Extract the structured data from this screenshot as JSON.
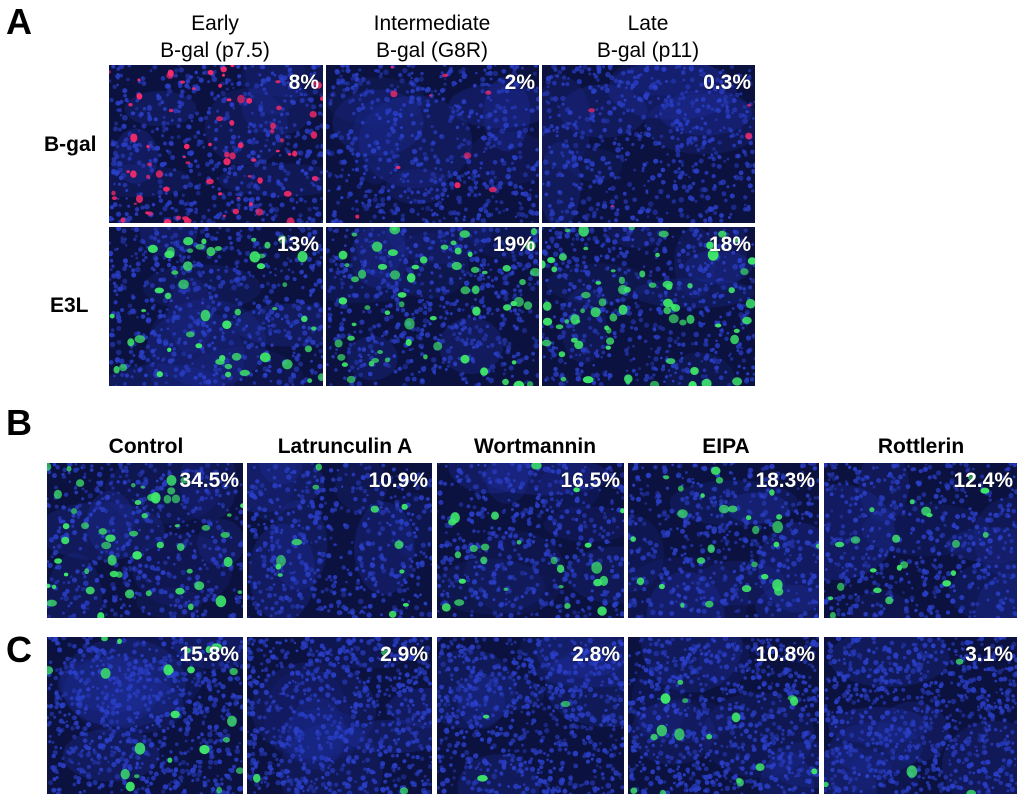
{
  "panels": {
    "A": {
      "letter": "A",
      "columns": [
        {
          "line1": "Early",
          "line2": "B-gal (p7.5)"
        },
        {
          "line1": "Intermediate",
          "line2": "B-gal (G8R)"
        },
        {
          "line1": "Late",
          "line2": "B-gal (p11)"
        }
      ],
      "rows": [
        {
          "label": "B-gal",
          "values": [
            "8%",
            "2%",
            "0.3%"
          ],
          "stain": "red"
        },
        {
          "label": "E3L",
          "values": [
            "13%",
            "19%",
            "18%"
          ],
          "stain": "green"
        }
      ]
    },
    "B": {
      "letter": "B",
      "columns": [
        "Control",
        "Latrunculin A",
        "Wortmannin",
        "EIPA",
        "Rottlerin"
      ],
      "values": [
        "34.5%",
        "10.9%",
        "16.5%",
        "18.3%",
        "12.4%"
      ]
    },
    "C": {
      "letter": "C",
      "values": [
        "15.8%",
        "2.9%",
        "2.8%",
        "10.8%",
        "3.1%"
      ]
    }
  },
  "colors": {
    "nuclei": "#2a3fc8",
    "background": "#0c1240",
    "red_stain": "#ff2a6a",
    "green_stain": "#3ee86a"
  }
}
